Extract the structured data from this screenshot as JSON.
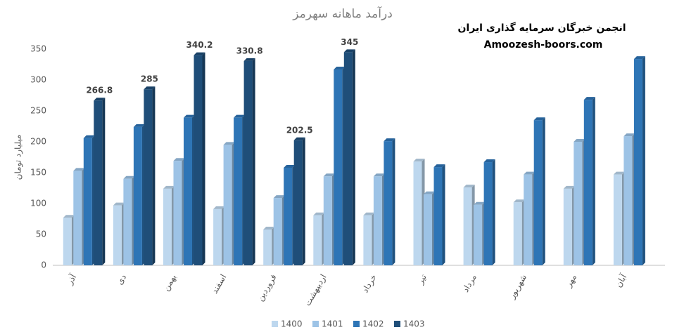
{
  "chart_data": {
    "type": "bar",
    "title": "درآمد ماهانه سهرمز",
    "annotations": [
      "انجمن خبرگان سرمایه گذاری ایران",
      "Amoozesh-boors.com"
    ],
    "y_label": "میلیارد تومان",
    "categories": [
      "آذر",
      "دی",
      "بهمن",
      "اسفند",
      "فروردین",
      "اردیبهشت",
      "خرداد",
      "تیر",
      "مرداد",
      "شهریور",
      "مهر",
      "آبان"
    ],
    "series": [
      {
        "name": "1400",
        "color": "#bdd7ee",
        "values": [
          77,
          97,
          124,
          91,
          58,
          81,
          81,
          168,
          126,
          102,
          124,
          147
        ]
      },
      {
        "name": "1401",
        "color": "#9dc3e6",
        "values": [
          153,
          140,
          169,
          195,
          109,
          144,
          144,
          115,
          98,
          147,
          200,
          209
        ]
      },
      {
        "name": "1402",
        "color": "#2e75b6",
        "values": [
          206,
          224,
          239,
          239,
          158,
          317,
          201,
          159,
          167,
          235,
          268,
          334
        ]
      },
      {
        "name": "1403",
        "color": "#1f4e79",
        "values": [
          266.8,
          285,
          340.2,
          330.8,
          202.5,
          345,
          null,
          null,
          null,
          null,
          null,
          null
        ],
        "data_labels": true
      }
    ],
    "ylim": [
      0,
      350
    ],
    "yticks": [
      0,
      50,
      100,
      150,
      200,
      250,
      300,
      350
    ],
    "grid": false,
    "legend": "bottom"
  }
}
